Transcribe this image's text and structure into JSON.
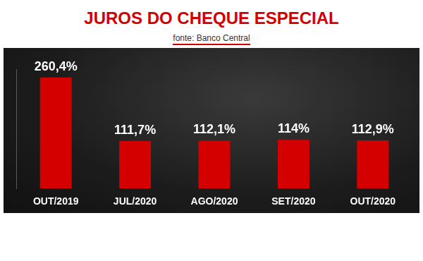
{
  "chart_data": {
    "type": "bar",
    "title": "JUROS DO CHEQUE ESPECIAL",
    "subtitle": "fonte: Banco Central",
    "categories": [
      "OUT/2019",
      "JUL/2020",
      "AGO/2020",
      "SET/2020",
      "OUT/2020"
    ],
    "values": [
      260.4,
      111.7,
      112.1,
      114,
      112.9
    ],
    "value_labels": [
      "260,4%",
      "111,7%",
      "112,1%",
      "114%",
      "112,9%"
    ],
    "color": "#d40000",
    "ylim": [
      0,
      280
    ],
    "grid": false,
    "data_labels": true,
    "tick_labels": "x"
  }
}
